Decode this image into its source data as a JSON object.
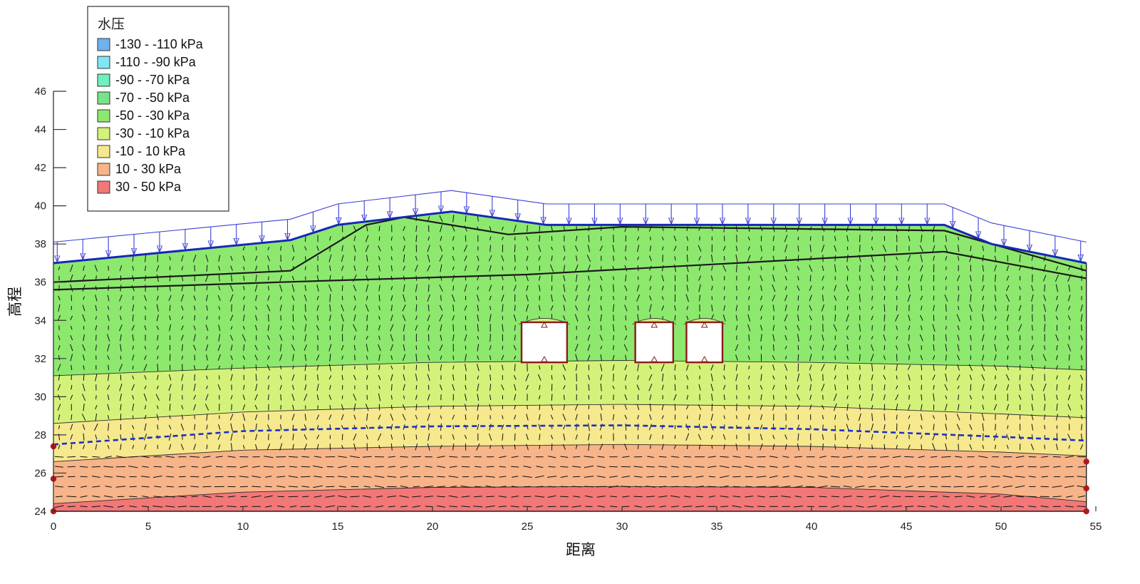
{
  "chart_data": {
    "type": "heatmap",
    "xlabel": "距离",
    "ylabel": "高程",
    "xlim": [
      0,
      55
    ],
    "ylim": [
      24,
      46
    ],
    "x_ticks": [
      "0",
      "5",
      "10",
      "15",
      "20",
      "25",
      "30",
      "35",
      "40",
      "45",
      "50",
      "55"
    ],
    "y_ticks": [
      "24",
      "26",
      "28",
      "30",
      "32",
      "34",
      "36",
      "38",
      "40",
      "42",
      "44",
      "46"
    ],
    "legend": {
      "title": "水压",
      "placement": "top-left",
      "entries": [
        {
          "label": "-130 - -110 kPa",
          "color": "#6fb2ee"
        },
        {
          "label": "-110 - -90 kPa",
          "color": "#7ee6f4"
        },
        {
          "label": "-90 - -70 kPa",
          "color": "#6ff0bc"
        },
        {
          "label": "-70 - -50 kPa",
          "color": "#78e488"
        },
        {
          "label": "-50 - -30 kPa",
          "color": "#8de86e"
        },
        {
          "label": "-30 - -10 kPa",
          "color": "#d4f27a"
        },
        {
          "label": "-10 - 10 kPa",
          "color": "#f6e88c"
        },
        {
          "label": "10 - 30 kPa",
          "color": "#f7b488"
        },
        {
          "label": "30 - 50 kPa",
          "color": "#f27777"
        }
      ]
    },
    "ground_surface": [
      [
        0,
        37.0
      ],
      [
        12.5,
        38.2
      ],
      [
        15,
        39.0
      ],
      [
        21,
        39.7
      ],
      [
        26,
        39.0
      ],
      [
        47,
        39.0
      ],
      [
        49.5,
        38.0
      ],
      [
        54.5,
        37.0
      ]
    ],
    "soil_layer_lines": [
      [
        [
          0,
          36.0
        ],
        [
          12.5,
          36.6
        ],
        [
          16.5,
          39.0
        ],
        [
          18.5,
          39.4
        ],
        [
          24,
          38.5
        ],
        [
          30,
          38.9
        ],
        [
          47,
          38.7
        ],
        [
          54.5,
          36.6
        ]
      ],
      [
        [
          0,
          35.6
        ],
        [
          12,
          36.0
        ],
        [
          25,
          36.4
        ],
        [
          47,
          37.6
        ],
        [
          54.5,
          36.2
        ]
      ]
    ],
    "phreatic_line": [
      [
        0,
        27.5
      ],
      [
        10,
        28.2
      ],
      [
        20,
        28.45
      ],
      [
        30,
        28.5
      ],
      [
        40,
        28.3
      ],
      [
        50,
        27.9
      ],
      [
        54.5,
        27.7
      ]
    ],
    "pressure_contours": [
      {
        "level_kPa": -30,
        "points": [
          [
            0,
            31.1
          ],
          [
            10,
            31.5
          ],
          [
            20,
            31.8
          ],
          [
            30,
            31.9
          ],
          [
            40,
            31.8
          ],
          [
            50,
            31.6
          ],
          [
            54.5,
            31.4
          ]
        ]
      },
      {
        "level_kPa": -10,
        "points": [
          [
            0,
            28.6
          ],
          [
            10,
            29.2
          ],
          [
            20,
            29.5
          ],
          [
            30,
            29.6
          ],
          [
            40,
            29.5
          ],
          [
            50,
            29.1
          ],
          [
            54.5,
            28.9
          ]
        ]
      },
      {
        "level_kPa": 10,
        "points": [
          [
            0,
            26.6
          ],
          [
            10,
            27.2
          ],
          [
            20,
            27.4
          ],
          [
            30,
            27.5
          ],
          [
            40,
            27.4
          ],
          [
            50,
            27.1
          ],
          [
            54.5,
            26.9
          ]
        ]
      },
      {
        "level_kPa": 30,
        "points": [
          [
            0,
            24.4
          ],
          [
            10,
            25.0
          ],
          [
            20,
            25.25
          ],
          [
            30,
            25.3
          ],
          [
            40,
            25.25
          ],
          [
            50,
            24.9
          ],
          [
            54.5,
            24.5
          ]
        ]
      }
    ],
    "culverts": [
      {
        "x": [
          24.7,
          27.1
        ],
        "y": [
          31.8,
          33.9
        ]
      },
      {
        "x": [
          30.7,
          32.7
        ],
        "y": [
          31.8,
          33.9
        ]
      },
      {
        "x": [
          33.4,
          35.3
        ],
        "y": [
          31.8,
          33.9
        ]
      }
    ],
    "surface_load_arrows": true,
    "flow_vector_field": true,
    "grid": false
  }
}
